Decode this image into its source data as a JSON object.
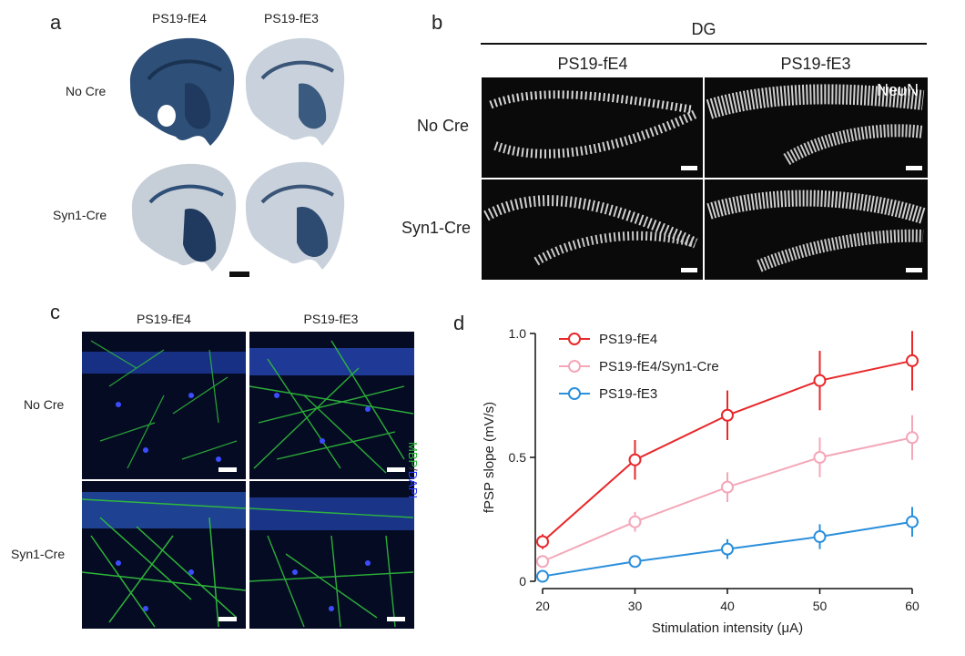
{
  "panel_a": {
    "letter": "a",
    "columns": [
      "PS19-fE4",
      "PS19-fE3"
    ],
    "rows": [
      "No Cre",
      "Syn1-Cre"
    ]
  },
  "panel_b": {
    "letter": "b",
    "region": "DG",
    "columns": [
      "PS19-fE4",
      "PS19-fE3"
    ],
    "rows": [
      "No Cre",
      "Syn1-Cre"
    ],
    "stain": "NeuN"
  },
  "panel_c": {
    "letter": "c",
    "columns": [
      "PS19-fE4",
      "PS19-fE3"
    ],
    "rows": [
      "No Cre",
      "Syn1-Cre"
    ],
    "stain_mbp": "MBP",
    "stain_sep": "/",
    "stain_dapi": "DAPI",
    "colors": {
      "mbp": "#2fbf3a",
      "dapi": "#2a3cff"
    }
  },
  "panel_d": {
    "letter": "d"
  },
  "chart_data": {
    "type": "line",
    "title": "",
    "xlabel": "Stimulation intensity (μA)",
    "ylabel": "fPSP slope (mV/s)",
    "x": [
      20,
      30,
      40,
      50,
      60
    ],
    "xlim": [
      20,
      60
    ],
    "ylim": [
      0,
      1.0
    ],
    "xticks": [
      "20",
      "30",
      "40",
      "50",
      "60"
    ],
    "yticks": [
      "0",
      "0.5",
      "1.0"
    ],
    "yticks_values": [
      0,
      0.5,
      1.0
    ],
    "legend_position": "top-left",
    "series": [
      {
        "name": "PS19-fE4",
        "color": "#e8282b",
        "values": [
          0.16,
          0.49,
          0.67,
          0.81,
          0.89
        ],
        "errors": [
          0.03,
          0.08,
          0.1,
          0.12,
          0.12
        ]
      },
      {
        "name": "PS19-fE4/Syn1-Cre",
        "color": "#f4a7b9",
        "values": [
          0.08,
          0.24,
          0.38,
          0.5,
          0.58
        ],
        "errors": [
          0.02,
          0.04,
          0.06,
          0.08,
          0.09
        ]
      },
      {
        "name": "PS19-fE3",
        "color": "#2b8fdb",
        "values": [
          0.02,
          0.08,
          0.13,
          0.18,
          0.24
        ],
        "errors": [
          0.01,
          0.02,
          0.04,
          0.05,
          0.06
        ]
      }
    ]
  }
}
